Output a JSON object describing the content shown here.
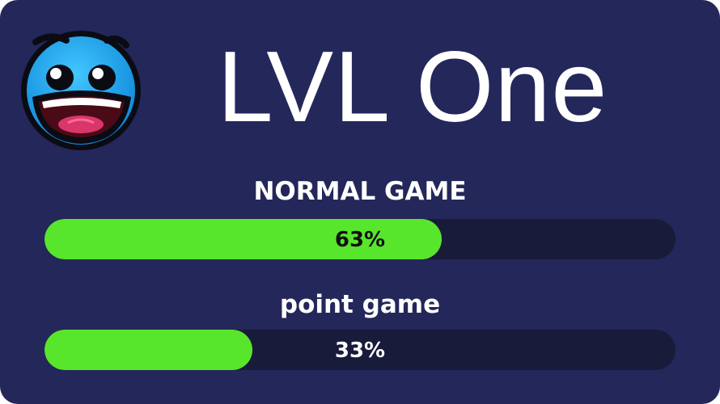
{
  "level": {
    "title": "LVL One",
    "icon": "smiling-face-icon"
  },
  "progress": [
    {
      "label": "NORMAL GAME",
      "value_text": "63%",
      "fraction": 0.63,
      "text_color": "#111111"
    },
    {
      "label": "point game",
      "value_text": "33%",
      "fraction": 0.33,
      "text_color": "#ffffff"
    }
  ],
  "colors": {
    "background": "#24275a",
    "track": "#191b3a",
    "fill": "#58e62d",
    "face": "#1ea6ee"
  }
}
